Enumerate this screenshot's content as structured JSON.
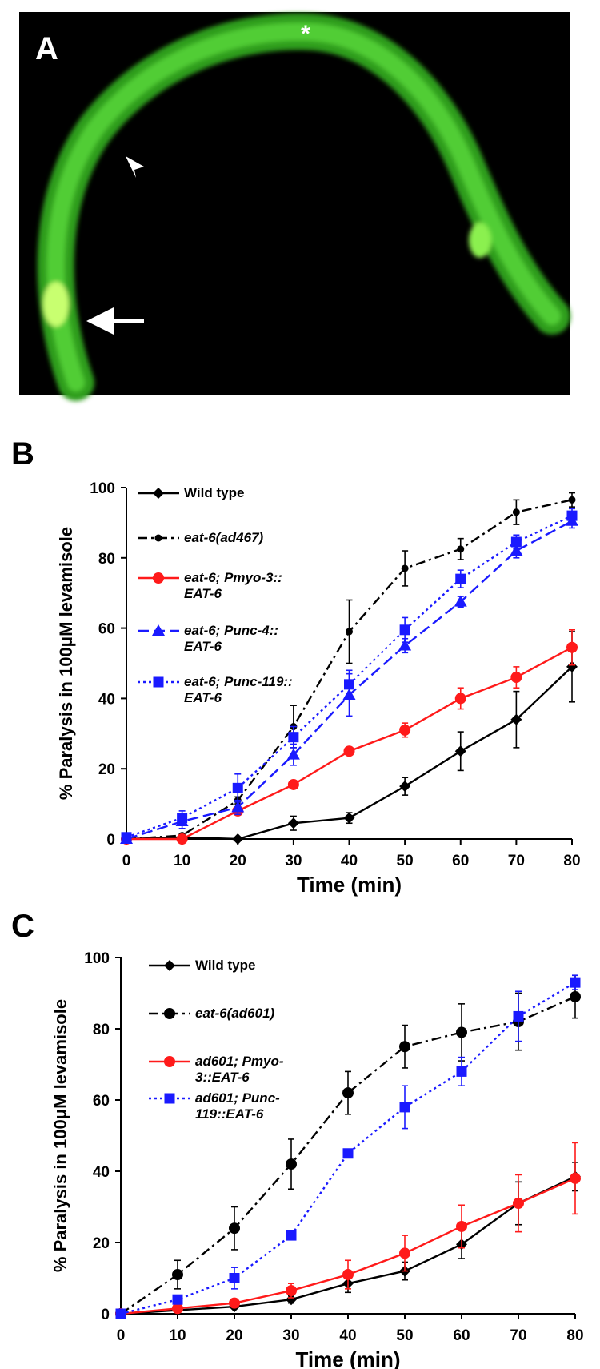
{
  "image_panel": {
    "label": "A",
    "annotation": "*"
  },
  "chart_data": [
    {
      "type": "line",
      "panel": "B",
      "x": [
        0,
        10,
        20,
        30,
        40,
        50,
        60,
        70,
        80
      ],
      "xlim": [
        0,
        80
      ],
      "xticks": [
        0,
        10,
        20,
        30,
        40,
        50,
        60,
        70,
        80
      ],
      "ylim": [
        0,
        100
      ],
      "yticks": [
        0,
        20,
        40,
        60,
        80,
        100
      ],
      "xlabel": "Time (min)",
      "ylabel": "% Paralysis in 100μM levamisole",
      "legend": "upper left",
      "series": [
        {
          "name": "Wild type",
          "color": "#000000",
          "dash": "solid",
          "marker": "diamond",
          "italic": false,
          "values": [
            0,
            0.5,
            0,
            4.5,
            6,
            15,
            25,
            34,
            49
          ],
          "errors": [
            0,
            0.5,
            0.5,
            2,
            1.5,
            2.5,
            5.5,
            8,
            10
          ]
        },
        {
          "name": "eat-6(ad467)",
          "color": "#000000",
          "dash": "dashdot",
          "marker": "small-circle",
          "italic": true,
          "values": [
            0,
            1,
            11,
            32,
            59,
            77,
            82.5,
            93,
            96.5
          ],
          "errors": [
            0,
            0.5,
            1,
            6,
            9,
            5,
            3,
            3.5,
            2
          ]
        },
        {
          "name": "eat-6; Pmyo-3::\nEAT-6",
          "color": "#ff1a1a",
          "dash": "solid",
          "marker": "circle",
          "italic": true,
          "values": [
            0,
            0,
            8,
            15.5,
            25,
            31,
            40,
            46,
            54.5
          ],
          "errors": [
            0,
            0,
            1,
            1,
            1,
            2,
            3,
            3,
            5
          ]
        },
        {
          "name": "eat-6; Punc-4::\nEAT-6",
          "color": "#1a1aff",
          "dash": "longdash",
          "marker": "triangle",
          "italic": true,
          "values": [
            0,
            5,
            9,
            24,
            41,
            55,
            67.5,
            82,
            90.5
          ],
          "errors": [
            0,
            2,
            2,
            3,
            6,
            2,
            1.5,
            2,
            2
          ]
        },
        {
          "name": "eat-6; Punc-119::\nEAT-6",
          "color": "#1a1aff",
          "dash": "dotted",
          "marker": "square",
          "italic": true,
          "values": [
            0.5,
            6,
            14.5,
            29,
            44,
            59.5,
            74,
            84.5,
            92
          ],
          "errors": [
            0,
            2,
            4,
            3,
            4,
            3.5,
            2.5,
            2,
            2
          ]
        }
      ]
    },
    {
      "type": "line",
      "panel": "C",
      "x": [
        0,
        10,
        20,
        30,
        40,
        50,
        60,
        70,
        80
      ],
      "xlim": [
        0,
        80
      ],
      "xticks": [
        0,
        10,
        20,
        30,
        40,
        50,
        60,
        70,
        80
      ],
      "ylim": [
        0,
        100
      ],
      "yticks": [
        0,
        20,
        40,
        60,
        80,
        100
      ],
      "xlabel": "Time (min)",
      "ylabel": "% Paralysis in 100μM levamisole",
      "legend": "upper left",
      "series": [
        {
          "name": "Wild type",
          "color": "#000000",
          "dash": "solid",
          "marker": "diamond",
          "italic": false,
          "values": [
            0,
            1,
            2,
            4,
            8.5,
            12,
            19.5,
            31,
            38.5
          ],
          "errors": [
            0,
            0.5,
            0.5,
            1,
            2.5,
            2.5,
            4,
            6,
            4
          ]
        },
        {
          "name": "eat-6(ad601)",
          "color": "#000000",
          "dash": "dashdot",
          "marker": "circle",
          "italic": true,
          "values": [
            0,
            11,
            24,
            42,
            62,
            75,
            79,
            82,
            89
          ],
          "errors": [
            0,
            4,
            6,
            7,
            6,
            6,
            8,
            8,
            6
          ]
        },
        {
          "name": "ad601; Pmyo-\n3::EAT-6",
          "color": "#ff1a1a",
          "dash": "solid",
          "marker": "circle",
          "italic": true,
          "values": [
            0,
            1.5,
            3,
            6.5,
            11,
            17,
            24.5,
            31,
            38
          ],
          "errors": [
            0,
            0.5,
            1,
            2,
            4,
            5,
            6,
            8,
            10
          ]
        },
        {
          "name": "ad601; Punc-\n119::EAT-6",
          "color": "#1a1aff",
          "dash": "dotted",
          "marker": "square",
          "italic": true,
          "values": [
            0,
            4,
            10,
            22,
            45,
            58,
            68,
            83.5,
            93
          ],
          "errors": [
            0,
            1,
            3,
            1,
            1,
            6,
            4,
            7,
            2
          ]
        }
      ]
    }
  ]
}
